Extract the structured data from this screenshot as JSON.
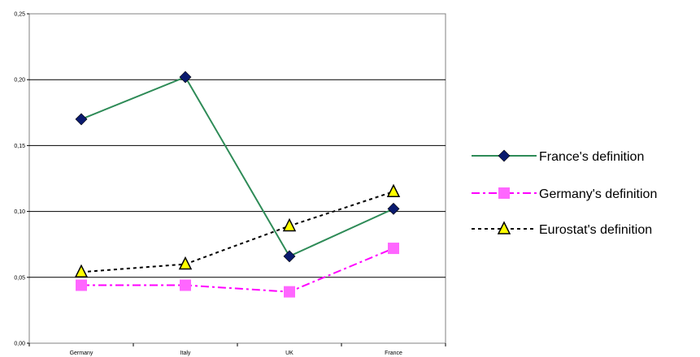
{
  "chart_data": {
    "type": "line",
    "categories": [
      "Germany",
      "Italy",
      "UK",
      "France"
    ],
    "ylim": [
      0,
      0.25
    ],
    "yticks": [
      "0,00",
      "0,05",
      "0,10",
      "0,15",
      "0,20",
      "0,25"
    ],
    "ytick_values": [
      0,
      0.05,
      0.1,
      0.15,
      0.2,
      0.25
    ],
    "grid": true,
    "legend_position": "right",
    "series": [
      {
        "name": "France's definition",
        "values": [
          0.17,
          0.202,
          0.066,
          0.102
        ],
        "color": "#2e8b57",
        "marker_color": "#0a1a6e",
        "marker": "diamond",
        "dash": "solid"
      },
      {
        "name": "Germany's definition",
        "values": [
          0.044,
          0.044,
          0.039,
          0.072
        ],
        "color": "#ff00ff",
        "marker_color": "#ff66ff",
        "marker": "square",
        "dash": "dashdot"
      },
      {
        "name": "Eurostat's definition",
        "values": [
          0.054,
          0.06,
          0.089,
          0.115
        ],
        "color": "#000000",
        "marker_color": "#ffff00",
        "marker": "triangle",
        "dash": "dotted"
      }
    ]
  }
}
